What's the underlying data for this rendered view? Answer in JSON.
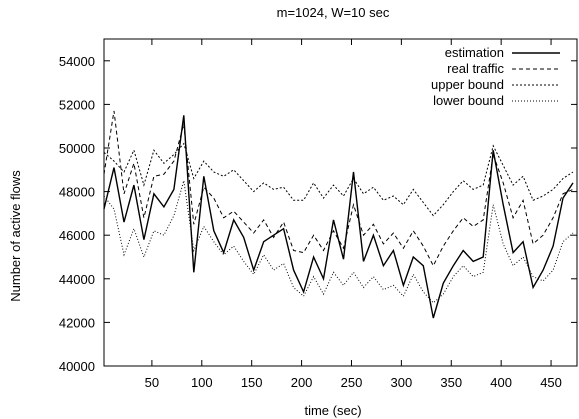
{
  "chart_data": {
    "type": "line",
    "title": "m=1024, W=10 sec",
    "xlabel": "time (sec)",
    "ylabel": "Number of active flows",
    "xlim": [
      2,
      476
    ],
    "ylim": [
      40000,
      55000
    ],
    "xticks": [
      50,
      100,
      150,
      200,
      250,
      300,
      350,
      400,
      450
    ],
    "yticks": [
      40000,
      42000,
      44000,
      46000,
      48000,
      50000,
      52000,
      54000
    ],
    "grid": false,
    "legend": "top-right",
    "x": [
      2,
      12,
      22,
      32,
      42,
      52,
      62,
      72,
      82,
      92,
      102,
      112,
      122,
      132,
      142,
      152,
      162,
      172,
      182,
      192,
      202,
      212,
      222,
      232,
      242,
      252,
      262,
      272,
      282,
      292,
      302,
      312,
      322,
      332,
      342,
      352,
      362,
      372,
      382,
      392,
      402,
      412,
      422,
      432,
      442,
      452,
      462,
      472
    ],
    "series": [
      {
        "name": "estimation",
        "dash": "",
        "width": 1.4,
        "values": [
          47200,
          49100,
          46600,
          48300,
          45800,
          47900,
          47300,
          48100,
          51500,
          44300,
          48700,
          46200,
          45200,
          46700,
          45900,
          44400,
          45700,
          46000,
          46300,
          44400,
          43400,
          45000,
          44000,
          46700,
          44900,
          48900,
          44800,
          46000,
          44600,
          45300,
          43700,
          45000,
          44600,
          42200,
          43800,
          44600,
          45300,
          44800,
          45000,
          49900,
          47400,
          45200,
          45700,
          43600,
          44400,
          45500,
          47700,
          48400
        ]
      },
      {
        "name": "real traffic",
        "dash": "4,3",
        "width": 1,
        "values": [
          48800,
          51700,
          47900,
          49300,
          46800,
          48700,
          48800,
          49400,
          51100,
          46500,
          48200,
          47700,
          46800,
          47100,
          46600,
          46100,
          46700,
          45900,
          46600,
          45300,
          45200,
          46000,
          45300,
          46200,
          45400,
          47400,
          46000,
          46500,
          45600,
          46100,
          45400,
          46200,
          45500,
          44600,
          45500,
          46200,
          46800,
          46400,
          46700,
          49700,
          48400,
          46800,
          47600,
          45600,
          46000,
          46800,
          47900,
          48100
        ]
      },
      {
        "name": "upper bound",
        "dash": "2,2",
        "width": 1,
        "values": [
          49800,
          49400,
          48900,
          49900,
          48300,
          49900,
          49300,
          49700,
          50200,
          48600,
          49400,
          48900,
          48700,
          49000,
          48500,
          48000,
          48400,
          48100,
          48200,
          47600,
          47600,
          48400,
          47700,
          48300,
          47800,
          48600,
          47900,
          48200,
          47600,
          47800,
          47400,
          48100,
          47500,
          46900,
          47400,
          48000,
          48500,
          48100,
          48300,
          50100,
          49200,
          48300,
          48700,
          47600,
          47800,
          48100,
          48600,
          48900
        ]
      },
      {
        "name": "lower bound",
        "dash": "1,2",
        "width": 1,
        "values": [
          47800,
          47200,
          45100,
          46300,
          45000,
          46200,
          46000,
          46900,
          48500,
          45300,
          46400,
          45700,
          45100,
          45500,
          44800,
          44200,
          45100,
          44400,
          44700,
          43600,
          43200,
          44100,
          43300,
          44300,
          43700,
          44300,
          43600,
          44100,
          43500,
          43700,
          43200,
          44200,
          43400,
          42900,
          43300,
          44100,
          44600,
          44100,
          44300,
          47400,
          45600,
          44600,
          45000,
          44100,
          43900,
          44400,
          45700,
          46100
        ]
      }
    ]
  }
}
